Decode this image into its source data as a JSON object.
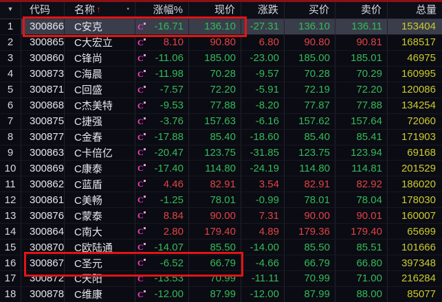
{
  "colors": {
    "background": "#0b0b13",
    "up_red": "#e04444",
    "down_green": "#33bb58",
    "volume_yellow": "#cbcb2e",
    "text_white": "#e6e6ec",
    "selected_row": "#3a3e4b",
    "badge_pink": "#ff3bd0",
    "annotation_red": "#e51414",
    "top_strip_red": "#8b1115"
  },
  "header": {
    "filter_icon": "▼",
    "sort_icon": "↑",
    "bullet_icon": "•",
    "columns": [
      "",
      "代码",
      "名称",
      "涨幅%",
      "现价",
      "涨跌",
      "买价",
      "卖价",
      "总量"
    ]
  },
  "annotations": {
    "highlighted_codes": [
      "300866",
      "300867"
    ],
    "selected_code": "300866"
  },
  "table": {
    "rows": [
      {
        "index": "1",
        "code": "300866",
        "name": "C安克",
        "badge": "C",
        "pct": "-16.71",
        "price": "136.10",
        "chg": "-27.31",
        "buy": "136.10",
        "sell": "136.11",
        "vol": "153404",
        "trend": "down",
        "selected": true
      },
      {
        "index": "2",
        "code": "300865",
        "name": "C大宏立",
        "badge": "C",
        "pct": "8.10",
        "price": "90.80",
        "chg": "6.80",
        "buy": "90.80",
        "sell": "90.81",
        "vol": "168517",
        "trend": "up",
        "selected": false
      },
      {
        "index": "3",
        "code": "300860",
        "name": "C锋尚",
        "badge": "C",
        "pct": "-11.06",
        "price": "185.00",
        "chg": "-23.00",
        "buy": "185.00",
        "sell": "185.01",
        "vol": "46975",
        "trend": "down",
        "selected": false
      },
      {
        "index": "4",
        "code": "300873",
        "name": "C海晨",
        "badge": "C",
        "pct": "-11.98",
        "price": "70.28",
        "chg": "-9.57",
        "buy": "70.28",
        "sell": "70.29",
        "vol": "160995",
        "trend": "down",
        "selected": false
      },
      {
        "index": "5",
        "code": "300871",
        "name": "C回盛",
        "badge": "C",
        "pct": "-7.57",
        "price": "72.20",
        "chg": "-5.91",
        "buy": "72.19",
        "sell": "72.20",
        "vol": "120086",
        "trend": "down",
        "selected": false
      },
      {
        "index": "6",
        "code": "300868",
        "name": "C杰美特",
        "badge": "C",
        "pct": "-9.53",
        "price": "77.88",
        "chg": "-8.20",
        "buy": "77.87",
        "sell": "77.88",
        "vol": "134254",
        "trend": "down",
        "selected": false
      },
      {
        "index": "7",
        "code": "300875",
        "name": "C捷强",
        "badge": "C",
        "pct": "-3.76",
        "price": "157.63",
        "chg": "-6.16",
        "buy": "157.62",
        "sell": "157.64",
        "vol": "72060",
        "trend": "down",
        "selected": false
      },
      {
        "index": "8",
        "code": "300877",
        "name": "C金春",
        "badge": "C",
        "pct": "-17.88",
        "price": "85.40",
        "chg": "-18.60",
        "buy": "85.40",
        "sell": "85.41",
        "vol": "171903",
        "trend": "down",
        "selected": false
      },
      {
        "index": "9",
        "code": "300863",
        "name": "C卡倍亿",
        "badge": "C",
        "pct": "-20.47",
        "price": "123.75",
        "chg": "-31.85",
        "buy": "123.75",
        "sell": "123.94",
        "vol": "69168",
        "trend": "down",
        "selected": false
      },
      {
        "index": "10",
        "code": "300869",
        "name": "C康泰",
        "badge": "C",
        "pct": "-17.40",
        "price": "114.80",
        "chg": "-24.19",
        "buy": "114.80",
        "sell": "114.81",
        "vol": "201529",
        "trend": "down",
        "selected": false
      },
      {
        "index": "11",
        "code": "300862",
        "name": "C蓝盾",
        "badge": "C",
        "pct": "4.46",
        "price": "82.91",
        "chg": "3.54",
        "buy": "82.91",
        "sell": "82.92",
        "vol": "186020",
        "trend": "up",
        "selected": false
      },
      {
        "index": "12",
        "code": "300861",
        "name": "C美畅",
        "badge": "C",
        "pct": "-1.25",
        "price": "78.01",
        "chg": "-0.99",
        "buy": "78.01",
        "sell": "78.04",
        "vol": "178030",
        "trend": "down",
        "selected": false
      },
      {
        "index": "13",
        "code": "300876",
        "name": "C蒙泰",
        "badge": "C",
        "pct": "8.84",
        "price": "90.00",
        "chg": "7.31",
        "buy": "90.00",
        "sell": "90.01",
        "vol": "160007",
        "trend": "up",
        "selected": false
      },
      {
        "index": "14",
        "code": "300864",
        "name": "C南大",
        "badge": "C",
        "pct": "2.80",
        "price": "179.40",
        "chg": "4.89",
        "buy": "179.36",
        "sell": "179.40",
        "vol": "65699",
        "trend": "up",
        "selected": false
      },
      {
        "index": "15",
        "code": "300870",
        "name": "C欧陆通",
        "badge": "C",
        "pct": "-14.07",
        "price": "85.50",
        "chg": "-14.00",
        "buy": "85.50",
        "sell": "85.51",
        "vol": "101666",
        "trend": "down",
        "selected": false
      },
      {
        "index": "16",
        "code": "300867",
        "name": "C圣元",
        "badge": "C",
        "pct": "-6.52",
        "price": "66.79",
        "chg": "-4.66",
        "buy": "66.79",
        "sell": "66.80",
        "vol": "397348",
        "trend": "down",
        "selected": false
      },
      {
        "index": "17",
        "code": "300872",
        "name": "C天阳",
        "badge": "C",
        "pct": "-13.53",
        "price": "70.99",
        "chg": "-11.11",
        "buy": "70.99",
        "sell": "71.00",
        "vol": "216284",
        "trend": "down",
        "selected": false
      },
      {
        "index": "18",
        "code": "300878",
        "name": "C维康",
        "badge": "C",
        "pct": "-12.00",
        "price": "87.99",
        "chg": "-12.00",
        "buy": "87.99",
        "sell": "88.00",
        "vol": "85077",
        "trend": "down",
        "selected": false
      }
    ]
  }
}
